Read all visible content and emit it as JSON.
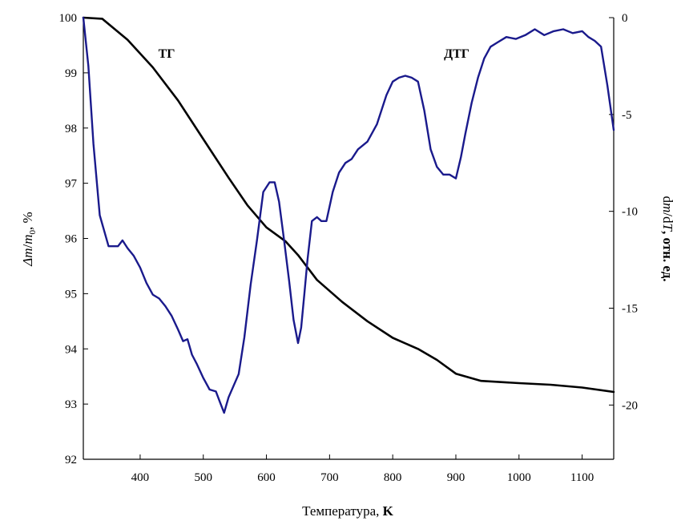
{
  "chart_data": {
    "type": "line",
    "title": "",
    "xlabel": {
      "prefix": "Температура, ",
      "unit": "K"
    },
    "ylabel_left": {
      "symbol": "Δm",
      "slash": "/",
      "m": "m",
      "sub": "0",
      "rest": ", %"
    },
    "ylabel_right": {
      "d": "d",
      "m": "m",
      "slash": "/d",
      "T": "T",
      "rest": ", отн. ед."
    },
    "xlim": [
      310,
      1150
    ],
    "ylim_left": [
      92,
      100
    ],
    "ylim_right": [
      -22.8,
      0
    ],
    "x_ticks": [
      400,
      500,
      600,
      700,
      800,
      900,
      1000,
      1100
    ],
    "y_left_ticks": [
      92,
      93,
      94,
      95,
      96,
      97,
      98,
      99,
      100
    ],
    "y_right_ticks": [
      0,
      -5,
      -10,
      -15,
      -20
    ],
    "series": [
      {
        "name": "ТГ",
        "axis": "left",
        "color": "#000000",
        "x": [
          310,
          340,
          380,
          420,
          460,
          500,
          540,
          570,
          600,
          630,
          650,
          680,
          720,
          760,
          800,
          840,
          870,
          900,
          940,
          1000,
          1050,
          1100,
          1150
        ],
        "y": [
          100,
          99.98,
          99.6,
          99.1,
          98.5,
          97.8,
          97.1,
          96.6,
          96.2,
          95.95,
          95.7,
          95.25,
          94.85,
          94.5,
          94.2,
          94.0,
          93.8,
          93.55,
          93.42,
          93.38,
          93.35,
          93.3,
          93.22
        ]
      },
      {
        "name": "ДТГ",
        "axis": "right",
        "color": "#1a1a8c",
        "x": [
          310,
          318,
          326,
          336,
          350,
          365,
          372,
          380,
          390,
          400,
          410,
          420,
          430,
          440,
          450,
          460,
          468,
          475,
          482,
          490,
          500,
          510,
          520,
          527,
          533,
          540,
          548,
          556,
          565,
          575,
          585,
          595,
          605,
          613,
          620,
          628,
          636,
          643,
          650,
          655,
          660,
          665,
          672,
          680,
          687,
          695,
          705,
          715,
          725,
          735,
          745,
          760,
          775,
          790,
          800,
          810,
          820,
          830,
          840,
          850,
          860,
          870,
          880,
          890,
          900,
          908,
          915,
          925,
          935,
          945,
          955,
          965,
          980,
          995,
          1010,
          1025,
          1040,
          1055,
          1070,
          1085,
          1100,
          1110,
          1120,
          1130,
          1140,
          1150
        ],
        "y": [
          0,
          -2.5,
          -6.5,
          -10.2,
          -11.8,
          -11.8,
          -11.5,
          -11.9,
          -12.3,
          -12.9,
          -13.7,
          -14.3,
          -14.5,
          -14.9,
          -15.4,
          -16.1,
          -16.7,
          -16.6,
          -17.4,
          -17.9,
          -18.6,
          -19.2,
          -19.3,
          -19.9,
          -20.4,
          -19.6,
          -19.0,
          -18.4,
          -16.5,
          -13.8,
          -11.5,
          -9.0,
          -8.5,
          -8.5,
          -9.5,
          -11.5,
          -13.6,
          -15.6,
          -16.8,
          -16.0,
          -14.3,
          -12.5,
          -10.5,
          -10.3,
          -10.5,
          -10.5,
          -9.0,
          -8.0,
          -7.5,
          -7.3,
          -6.8,
          -6.4,
          -5.5,
          -4.0,
          -3.3,
          -3.1,
          -3.0,
          -3.1,
          -3.3,
          -4.8,
          -6.8,
          -7.7,
          -8.1,
          -8.1,
          -8.3,
          -7.2,
          -6.0,
          -4.4,
          -3.1,
          -2.1,
          -1.5,
          -1.3,
          -1.0,
          -1.1,
          -0.9,
          -0.6,
          -0.9,
          -0.7,
          -0.6,
          -0.8,
          -0.7,
          -1.0,
          -1.2,
          -1.5,
          -3.5,
          -5.8
        ]
      }
    ]
  }
}
